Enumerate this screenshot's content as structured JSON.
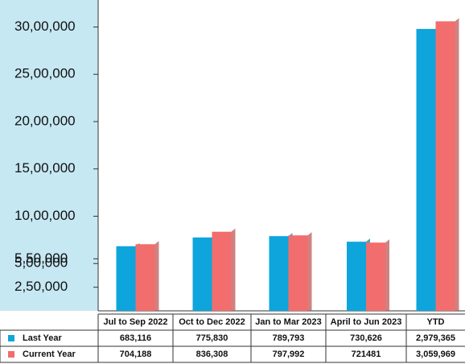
{
  "chart_data": {
    "type": "bar",
    "categories": [
      "Jul to Sep 2022",
      "Oct to Dec 2022",
      "Jan to Mar 2023",
      "April to Jun 2023",
      "YTD"
    ],
    "series": [
      {
        "name": "Last Year",
        "color": "#0ea5dc",
        "values": [
          683116,
          775830,
          789793,
          730626,
          2979365
        ],
        "value_labels": [
          "683,116",
          "775,830",
          "789,793",
          "730,626",
          "2,979,365"
        ]
      },
      {
        "name": "Current Year",
        "color": "#f26d6d",
        "values": [
          704188,
          836308,
          797992,
          721481,
          3059969
        ],
        "value_labels": [
          "704,188",
          "836,308",
          "797,992",
          "721481",
          "3,059,969"
        ]
      }
    ],
    "ylim": [
      0,
      3200000
    ],
    "yticks": [
      {
        "value": 250000,
        "label": "2,50,000"
      },
      {
        "value": 500000,
        "label": "5,00,000"
      },
      {
        "value": 550000,
        "label": "5,50,000"
      },
      {
        "value": 1000000,
        "label": "10,00,000"
      },
      {
        "value": 1500000,
        "label": "15,00,000"
      },
      {
        "value": 2000000,
        "label": "20,00,000"
      },
      {
        "value": 2500000,
        "label": "25,00,000"
      },
      {
        "value": 3000000,
        "label": "30,00,000"
      }
    ]
  }
}
